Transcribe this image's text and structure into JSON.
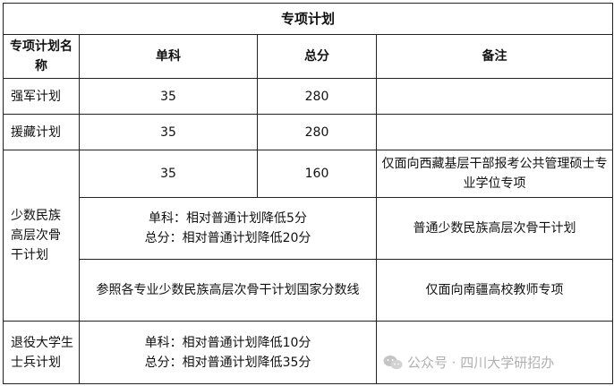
{
  "title": "专项计划",
  "headers": [
    "专项计划名称",
    "单科",
    "总分",
    "备注"
  ],
  "rows": {
    "qiangjun": {
      "name": "强军计划",
      "single": "35",
      "total": "280",
      "note": ""
    },
    "yuanzang": {
      "name": "援藏计划",
      "single": "35",
      "total": "280",
      "note": ""
    },
    "minority": {
      "name": "少数民族高层次骨干计划",
      "sub1": {
        "single": "35",
        "total": "160",
        "note": "仅面向西藏基层干部报考公共管理硕士专业学位专项"
      },
      "sub2": {
        "line1": "单科：相对普通计划降低5分",
        "line2": "总分：相对普通计划降低20分",
        "note": "普通少数民族高层次骨干计划"
      },
      "sub3": {
        "text": "参照各专业少数民族高层次骨干计划国家分数线",
        "note": "仅面向南疆高校教师专项"
      }
    },
    "veteran": {
      "name": "退役大学生士兵计划",
      "line1": "单科：相对普通计划降低10分",
      "line2": "总分：相对普通计划降低35分",
      "note": ""
    }
  },
  "watermark": "公众号 · 四川大学研招办"
}
